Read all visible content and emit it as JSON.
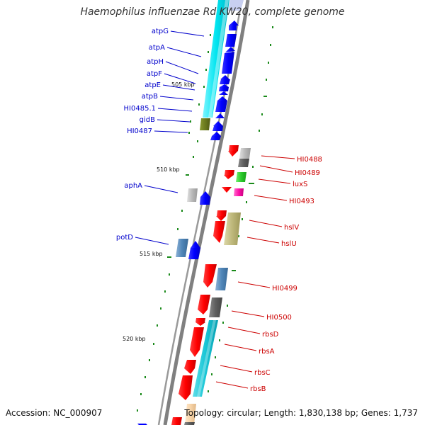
{
  "title": "Haemophilus influenzae Rd KW20, complete genome",
  "footer": {
    "accession": "Accession: NC_000907",
    "summary": "Topology: circular; Length: 1,830,138 bp; Genes: 1,737"
  },
  "colors": {
    "forward_gene": "#0000ff",
    "reverse_gene": "#ff0000",
    "forward_label": "#0000cc",
    "reverse_label": "#cc0000",
    "backbone": "#808080",
    "tick": "#1a8a1a"
  },
  "axis_labels": [
    "505 kbp",
    "510 kbp",
    "515 kbp",
    "520 kbp"
  ],
  "forward_gene_labels": [
    "atpG",
    "atpA",
    "atpH",
    "atpF",
    "atpE",
    "atpB",
    "HI0485.1",
    "gidB",
    "HI0487",
    "aphA",
    "potD"
  ],
  "reverse_gene_labels": [
    "HI0488",
    "HI0489",
    "luxS",
    "HI0493",
    "hslV",
    "hslU",
    "HI0499",
    "HI0500",
    "rbsD",
    "rbsA",
    "rbsC",
    "rbsB"
  ]
}
